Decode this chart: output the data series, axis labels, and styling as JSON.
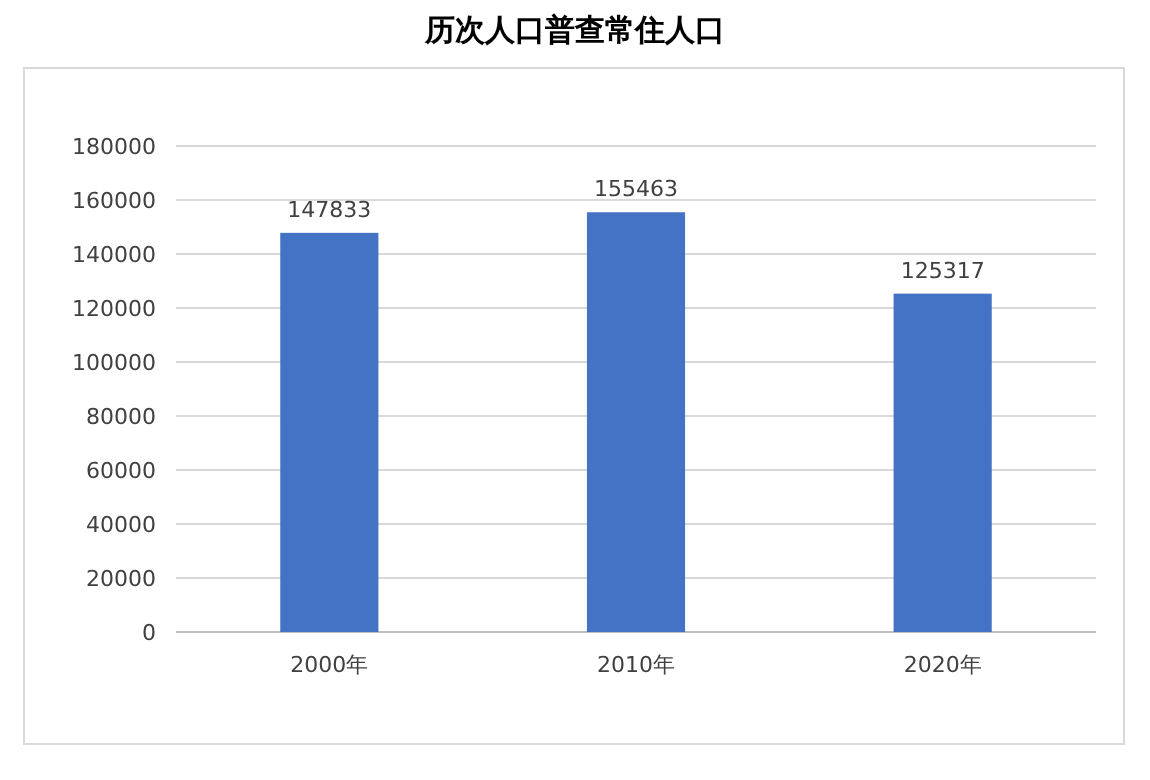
{
  "chart_data": {
    "type": "bar",
    "title": "历次人口普查常住人口",
    "categories": [
      "2000年",
      "2010年",
      "2020年"
    ],
    "values": [
      147833,
      155463,
      125317
    ],
    "color": "#4472c4",
    "ylim": [
      0,
      180000
    ],
    "yticks": [
      0,
      20000,
      40000,
      60000,
      80000,
      100000,
      120000,
      140000,
      160000,
      180000
    ],
    "grid": "y",
    "data_labels": true
  }
}
